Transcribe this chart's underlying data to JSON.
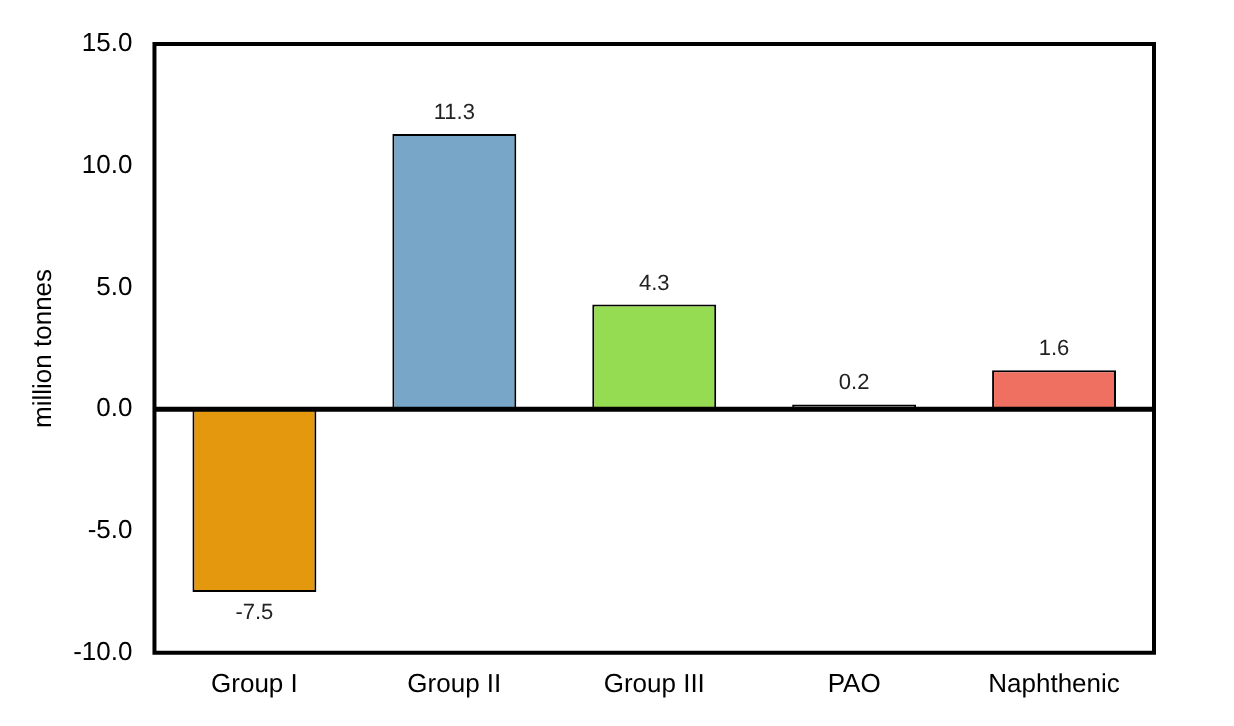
{
  "chart_data": {
    "type": "bar",
    "ylabel": "million tonnes",
    "categories": [
      "Group I",
      "Group II",
      "Group III",
      "PAO",
      "Naphthenic"
    ],
    "values": [
      -7.5,
      11.3,
      4.3,
      0.2,
      1.6
    ],
    "colors": [
      "#e3980e",
      "#78a6c9",
      "#96dc52",
      "#a6a6a6",
      "#ef7060"
    ],
    "ylim": [
      -10,
      15
    ],
    "yticks": [
      {
        "value": -10,
        "label": "-10.0"
      },
      {
        "value": -5,
        "label": "-5.0"
      },
      {
        "value": 0,
        "label": "0.0"
      },
      {
        "value": 5,
        "label": "5.0"
      },
      {
        "value": 10,
        "label": "10.0"
      },
      {
        "value": 15,
        "label": "15.0"
      }
    ],
    "ref_lines": [
      {
        "axis": "y",
        "value": 0,
        "color": "#000000",
        "line_style": "solid"
      }
    ],
    "grid": false,
    "legend": false,
    "data_labels": true
  }
}
